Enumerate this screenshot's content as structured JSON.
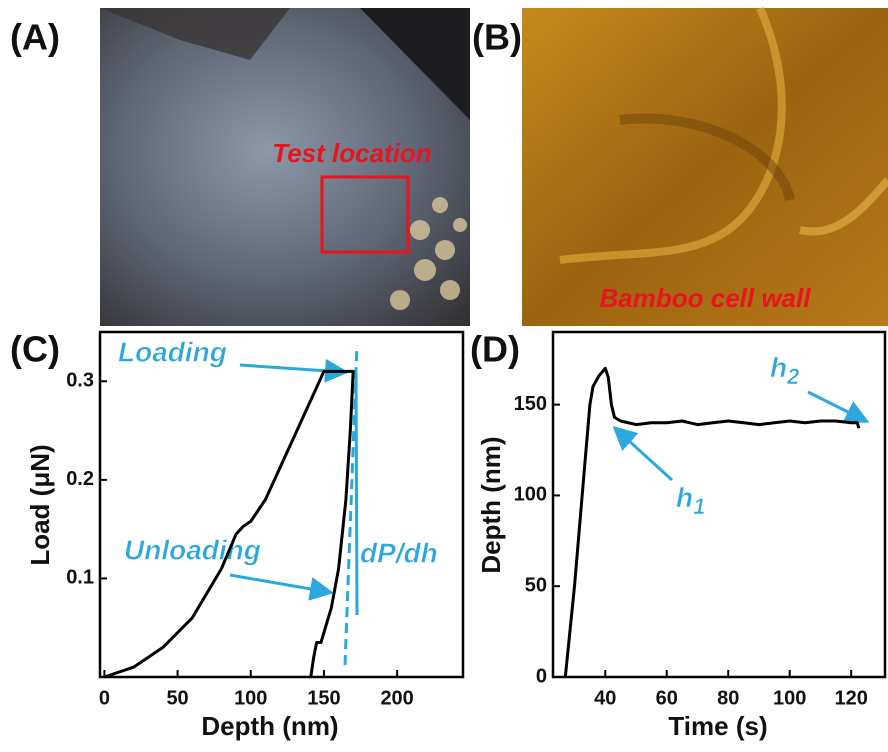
{
  "panels": [
    {
      "label": "(A)",
      "annotation": "Test location"
    },
    {
      "label": "(B)",
      "annotation": "Bamboo cell wall"
    }
  ],
  "chart_data": [
    {
      "type": "line",
      "panel_label": "(C)",
      "x_label": "Depth (nm)",
      "y_label": "Load (μN)",
      "color": "#000000",
      "x": [
        0,
        20,
        40,
        60,
        80,
        90,
        95,
        100,
        110,
        130,
        150,
        170,
        168,
        165,
        160,
        155,
        150,
        148,
        145,
        143,
        141
      ],
      "values": [
        0,
        0.01,
        0.03,
        0.06,
        0.11,
        0.145,
        0.153,
        0.158,
        0.18,
        0.245,
        0.31,
        0.31,
        0.25,
        0.18,
        0.11,
        0.07,
        0.045,
        0.035,
        0.035,
        0.02,
        0
      ],
      "xlim": [
        -3,
        245
      ],
      "ylim": [
        0,
        0.35
      ],
      "xticks": [
        0,
        50,
        100,
        150,
        200
      ],
      "yticks": [
        0.1,
        0.2,
        0.3
      ],
      "annotations": [
        {
          "text": "Loading"
        },
        {
          "text": "Unloading"
        },
        {
          "text": "dP/dh"
        }
      ]
    },
    {
      "type": "line",
      "panel_label": "(D)",
      "x_label": "Time (s)",
      "y_label": "Depth (nm)",
      "color": "#000000",
      "x": [
        27,
        30,
        33,
        35,
        36,
        38,
        40,
        41,
        42,
        43,
        45,
        50,
        55,
        60,
        65,
        70,
        75,
        80,
        85,
        90,
        95,
        100,
        105,
        110,
        115,
        120,
        122,
        122.5
      ],
      "values": [
        0,
        50,
        110,
        150,
        160,
        166,
        170,
        165,
        150,
        143,
        141,
        139,
        140,
        140,
        141,
        139,
        140,
        141,
        140,
        139,
        140,
        141,
        140,
        141,
        141,
        140,
        140,
        137
      ],
      "xlim": [
        23,
        131
      ],
      "ylim": [
        0,
        190
      ],
      "xticks": [
        40,
        60,
        80,
        100,
        120
      ],
      "yticks": [
        0,
        50,
        100,
        150
      ],
      "annotations": [
        {
          "text": "h",
          "sub": "1"
        },
        {
          "text": "h",
          "sub": "2"
        }
      ]
    }
  ]
}
